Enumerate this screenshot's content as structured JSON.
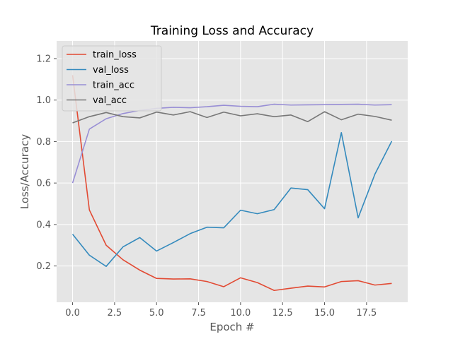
{
  "chart_data": {
    "type": "line",
    "title": "Training Loss and Accuracy",
    "xlabel": "Epoch #",
    "ylabel": "Loss/Accuracy",
    "xlim": [
      -0.95,
      19.95
    ],
    "ylim": [
      0.025,
      1.285
    ],
    "x_ticks": [
      0.0,
      2.5,
      5.0,
      7.5,
      10.0,
      12.5,
      15.0,
      17.5
    ],
    "x_tick_labels": [
      "0.0",
      "2.5",
      "5.0",
      "7.5",
      "10.0",
      "12.5",
      "15.0",
      "17.5"
    ],
    "y_ticks": [
      0.2,
      0.4,
      0.6,
      0.8,
      1.0,
      1.2
    ],
    "y_tick_labels": [
      "0.2",
      "0.4",
      "0.6",
      "0.8",
      "1.0",
      "1.2"
    ],
    "grid": true,
    "legend_position": "top-left",
    "background_color": "#e5e5e5",
    "x": [
      0,
      1,
      2,
      3,
      4,
      5,
      6,
      7,
      8,
      9,
      10,
      11,
      12,
      13,
      14,
      15,
      16,
      17,
      18,
      19
    ],
    "series": [
      {
        "name": "train_loss",
        "color": "#e24a33",
        "values": [
          1.12,
          0.47,
          0.3,
          0.23,
          0.18,
          0.14,
          0.137,
          0.138,
          0.125,
          0.1,
          0.143,
          0.12,
          0.082,
          0.093,
          0.103,
          0.099,
          0.125,
          0.129,
          0.108,
          0.116
        ]
      },
      {
        "name": "val_loss",
        "color": "#348abd",
        "values": [
          0.353,
          0.252,
          0.198,
          0.292,
          0.337,
          0.272,
          0.313,
          0.356,
          0.387,
          0.384,
          0.469,
          0.452,
          0.472,
          0.576,
          0.568,
          0.476,
          0.843,
          0.432,
          0.643,
          0.802
        ]
      },
      {
        "name": "train_acc",
        "color": "#988ed5",
        "values": [
          0.6,
          0.86,
          0.91,
          0.935,
          0.95,
          0.96,
          0.965,
          0.963,
          0.968,
          0.975,
          0.97,
          0.968,
          0.98,
          0.976,
          0.977,
          0.978,
          0.979,
          0.98,
          0.976,
          0.978
        ]
      },
      {
        "name": "val_acc",
        "color": "#777777",
        "values": [
          0.89,
          0.92,
          0.94,
          0.92,
          0.914,
          0.942,
          0.928,
          0.944,
          0.916,
          0.942,
          0.924,
          0.934,
          0.92,
          0.928,
          0.896,
          0.944,
          0.905,
          0.932,
          0.921,
          0.903
        ]
      }
    ]
  }
}
